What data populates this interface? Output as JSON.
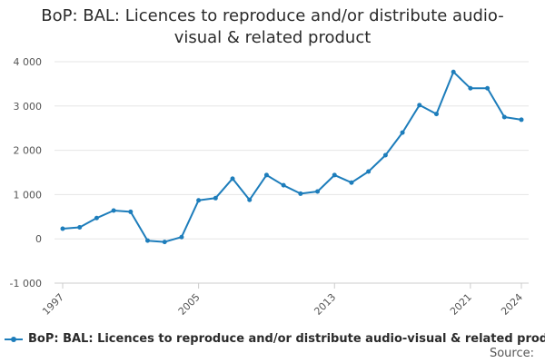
{
  "colors": {
    "series": "#1d7dbb",
    "grid": "#e6e6e6",
    "axis": "#cccccc",
    "text": "#2b2b2b"
  },
  "title_lines": [
    "BoP: BAL: Licences to reproduce and/or distribute audio-",
    "visual & related product"
  ],
  "source_label": "Source:",
  "chart_data": {
    "type": "line",
    "title": "BoP: BAL: Licences to reproduce and/or distribute audio-visual & related product",
    "xlabel": "",
    "ylabel": "",
    "ylim": [
      -1000,
      4000
    ],
    "xlim": [
      1997,
      2024
    ],
    "yticks": [
      -1000,
      0,
      1000,
      2000,
      3000,
      4000
    ],
    "ytick_labels": [
      "-1 000",
      "0",
      "1 000",
      "2 000",
      "3 000",
      "4 000"
    ],
    "xticks": [
      1997,
      2005,
      2013,
      2021,
      2024
    ],
    "xtick_labels": [
      "1997",
      "2005",
      "2013",
      "2021",
      "2024"
    ],
    "grid": "horizontal",
    "legend_position": "bottom",
    "series": [
      {
        "name": "BoP: BAL: Licences to reproduce and/or distribute audio-visual & related product",
        "x": [
          1997,
          1998,
          1999,
          2000,
          2001,
          2002,
          2003,
          2004,
          2005,
          2006,
          2007,
          2008,
          2009,
          2010,
          2011,
          2012,
          2013,
          2014,
          2015,
          2016,
          2017,
          2018,
          2019,
          2020,
          2021,
          2022,
          2023,
          2024
        ],
        "values": [
          230,
          260,
          470,
          640,
          610,
          -40,
          -70,
          40,
          870,
          920,
          1360,
          880,
          1440,
          1210,
          1020,
          1070,
          1440,
          1270,
          1520,
          1890,
          2400,
          3020,
          2820,
          3770,
          3400,
          3400,
          2750,
          2690
        ]
      }
    ]
  }
}
